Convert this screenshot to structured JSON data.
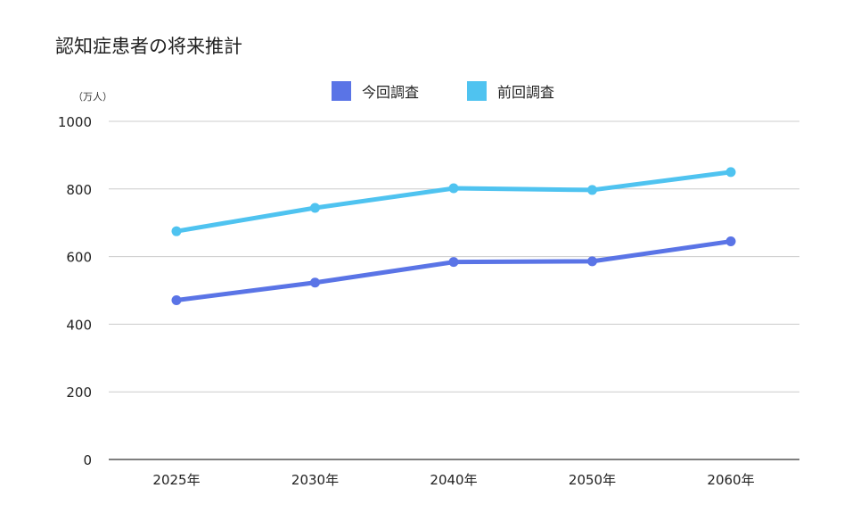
{
  "chart_data": {
    "type": "line",
    "title": "認知症患者の将来推計",
    "unit_label": "（万人）",
    "categories": [
      "2025年",
      "2030年",
      "2040年",
      "2050年",
      "2060年"
    ],
    "ylim": [
      0,
      1000
    ],
    "yticks": [
      0,
      200,
      400,
      600,
      800,
      1000
    ],
    "grid": true,
    "legend_position": "top-center",
    "series": [
      {
        "name": "今回調査",
        "values": [
          471,
          523,
          584,
          586,
          645
        ],
        "color": "#5a74e6"
      },
      {
        "name": "前回調査",
        "values": [
          675,
          744,
          802,
          797,
          850
        ],
        "color": "#4fc3f0"
      }
    ],
    "colors": {
      "grid": "#cccccc",
      "axis": "#555555"
    }
  }
}
